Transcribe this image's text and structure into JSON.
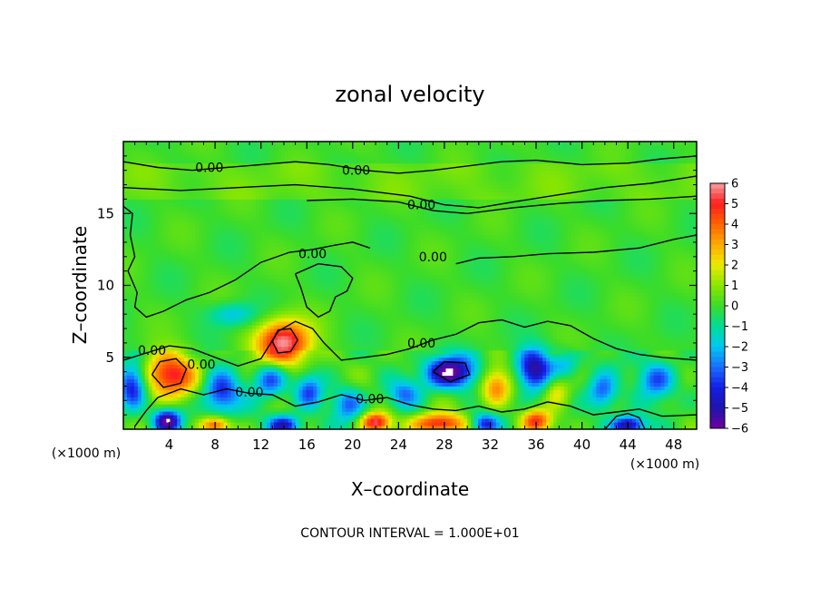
{
  "chart_data": {
    "type": "heatmap",
    "title": "zonal velocity",
    "xlabel": "X–coordinate",
    "ylabel": "Z–coordinate",
    "x_unit_left": "(×1000 m)",
    "x_unit_right": "(×1000 m)",
    "footnote": "CONTOUR INTERVAL = 1.000E+01",
    "xlim": [
      0,
      50
    ],
    "ylim": [
      0,
      20
    ],
    "x_ticks": [
      4,
      8,
      12,
      16,
      20,
      24,
      28,
      32,
      36,
      40,
      44,
      48
    ],
    "x_tick_labels": [
      "4",
      "8",
      "12",
      "16",
      "20",
      "24",
      "28",
      "32",
      "36",
      "40",
      "44",
      "48"
    ],
    "y_ticks": [
      5,
      10,
      15
    ],
    "y_tick_labels": [
      "5",
      "10",
      "15"
    ],
    "colorbar": {
      "min": -6,
      "max": 6,
      "ticks": [
        6,
        5,
        4,
        3,
        2,
        1,
        0,
        -1,
        -2,
        -3,
        -4,
        -5,
        -6
      ],
      "tick_labels": [
        "6",
        "5",
        "4",
        "3",
        "2",
        "1",
        "0",
        "−1",
        "−2",
        "−3",
        "−4",
        "−5",
        "−6"
      ],
      "colors": [
        "#f4a0a0",
        "#ff2a2a",
        "#ff5a00",
        "#ff9a00",
        "#ffd000",
        "#c8e000",
        "#55dd00",
        "#22cc33",
        "#00dd99",
        "#00c8ee",
        "#1f66ff",
        "#2222cc",
        "#7a00b0"
      ]
    },
    "contour_labels": [
      {
        "text": "0.00",
        "x": 7.5,
        "y": 18.2
      },
      {
        "text": "0.00",
        "x": 20.3,
        "y": 18.0
      },
      {
        "text": "0.00",
        "x": 26.0,
        "y": 15.6
      },
      {
        "text": "0.00",
        "x": 16.5,
        "y": 12.2
      },
      {
        "text": "0.00",
        "x": 27.0,
        "y": 12.0
      },
      {
        "text": "0.00",
        "x": 2.5,
        "y": 5.5
      },
      {
        "text": "0.00",
        "x": 6.8,
        "y": 4.5
      },
      {
        "text": "0.00",
        "x": 11.0,
        "y": 2.6
      },
      {
        "text": "0.00",
        "x": 26.0,
        "y": 6.0
      },
      {
        "text": "0.00",
        "x": 21.5,
        "y": 2.1
      }
    ],
    "anomalies": [
      {
        "x": 4.0,
        "y": 3.8,
        "v": 5.5,
        "sx": 2.2,
        "sy": 1.5
      },
      {
        "x": 14.0,
        "y": 6.0,
        "v": 6.0,
        "sx": 2.3,
        "sy": 1.6
      },
      {
        "x": 0.8,
        "y": 3.0,
        "v": -4.5,
        "sx": 1.2,
        "sy": 1.6
      },
      {
        "x": 8.5,
        "y": 2.6,
        "v": -4.0,
        "sx": 1.6,
        "sy": 1.5
      },
      {
        "x": 12.8,
        "y": 3.5,
        "v": -3.5,
        "sx": 1.4,
        "sy": 1.2
      },
      {
        "x": 16.2,
        "y": 2.6,
        "v": -3.5,
        "sx": 1.2,
        "sy": 1.2
      },
      {
        "x": 19.6,
        "y": 1.8,
        "v": -3.0,
        "sx": 1.4,
        "sy": 1.2
      },
      {
        "x": 28.5,
        "y": 4.0,
        "v": -6.0,
        "sx": 2.2,
        "sy": 1.1
      },
      {
        "x": 32.5,
        "y": 3.0,
        "v": 3.5,
        "sx": 1.3,
        "sy": 1.3
      },
      {
        "x": 35.8,
        "y": 4.2,
        "v": -5.5,
        "sx": 1.5,
        "sy": 1.4
      },
      {
        "x": 37.8,
        "y": 2.8,
        "v": 2.5,
        "sx": 1.2,
        "sy": 1.2
      },
      {
        "x": 41.8,
        "y": 2.6,
        "v": -3.5,
        "sx": 1.3,
        "sy": 1.3
      },
      {
        "x": 46.5,
        "y": 3.5,
        "v": -3.5,
        "sx": 1.6,
        "sy": 1.3
      },
      {
        "x": 3.8,
        "y": 0.6,
        "v": -6.0,
        "sx": 1.2,
        "sy": 0.8
      },
      {
        "x": 8.0,
        "y": 0.3,
        "v": 4.5,
        "sx": 1.3,
        "sy": 0.6
      },
      {
        "x": 14.0,
        "y": 0.3,
        "v": -5.0,
        "sx": 1.4,
        "sy": 0.7
      },
      {
        "x": 22.0,
        "y": 0.5,
        "v": 5.5,
        "sx": 1.3,
        "sy": 0.7
      },
      {
        "x": 27.5,
        "y": 0.4,
        "v": 5.0,
        "sx": 2.4,
        "sy": 0.7
      },
      {
        "x": 31.5,
        "y": 0.4,
        "v": -4.0,
        "sx": 1.2,
        "sy": 0.7
      },
      {
        "x": 36.0,
        "y": 0.6,
        "v": 4.5,
        "sx": 1.3,
        "sy": 0.8
      },
      {
        "x": 44.0,
        "y": 0.3,
        "v": -5.5,
        "sx": 1.4,
        "sy": 0.6
      },
      {
        "x": 24.5,
        "y": 2.5,
        "v": -2.5,
        "sx": 1.4,
        "sy": 1.0
      },
      {
        "x": 9.5,
        "y": 8.0,
        "v": -2.0,
        "sx": 2.0,
        "sy": 0.8
      },
      {
        "x": 38.5,
        "y": 4.5,
        "v": -2.0,
        "sx": 1.2,
        "sy": 1.0
      }
    ]
  }
}
